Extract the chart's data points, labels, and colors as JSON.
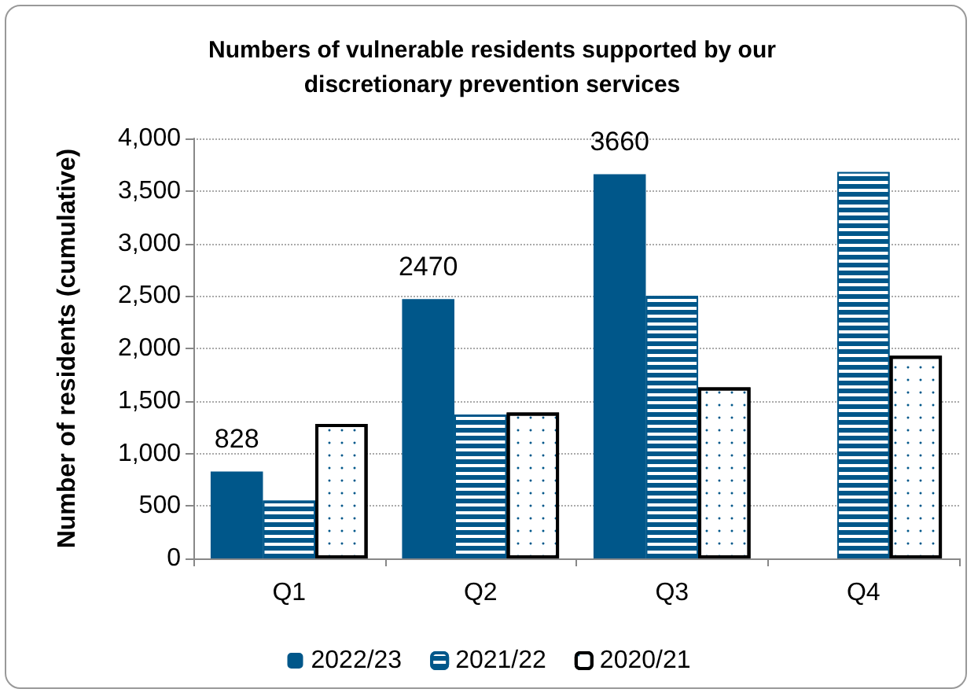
{
  "chart_data": {
    "type": "bar",
    "title": "Numbers of vulnerable residents supported by our\ndiscretionary prevention services",
    "ylabel": "Number of residents (cumulative)",
    "categories": [
      "Q1",
      "Q2",
      "Q3",
      "Q4"
    ],
    "series": [
      {
        "name": "2022/23",
        "color": "#00578a",
        "values": [
          828,
          2470,
          3660,
          null
        ],
        "value_labels": [
          "828",
          "2470",
          "3660",
          null
        ]
      },
      {
        "name": "2021/22",
        "color": "#00578a",
        "values": [
          550,
          1370,
          2500,
          3680
        ]
      },
      {
        "name": "2020/21",
        "color": "#ffffff",
        "values": [
          1280,
          1390,
          1630,
          1930
        ]
      }
    ],
    "ylim": [
      0,
      4000
    ],
    "yticks": [
      0,
      500,
      {
        "value": 1000,
        "label": "1,000"
      },
      {
        "value": 1500,
        "label": "1,500"
      },
      {
        "value": 2000,
        "label": "2,000"
      },
      {
        "value": 2500,
        "label": "2,500"
      },
      {
        "value": 3000,
        "label": "3,000"
      },
      {
        "value": 3500,
        "label": "3,500"
      },
      {
        "value": 4000,
        "label": "4,000"
      }
    ],
    "grid": "y",
    "legend": "bottom"
  }
}
